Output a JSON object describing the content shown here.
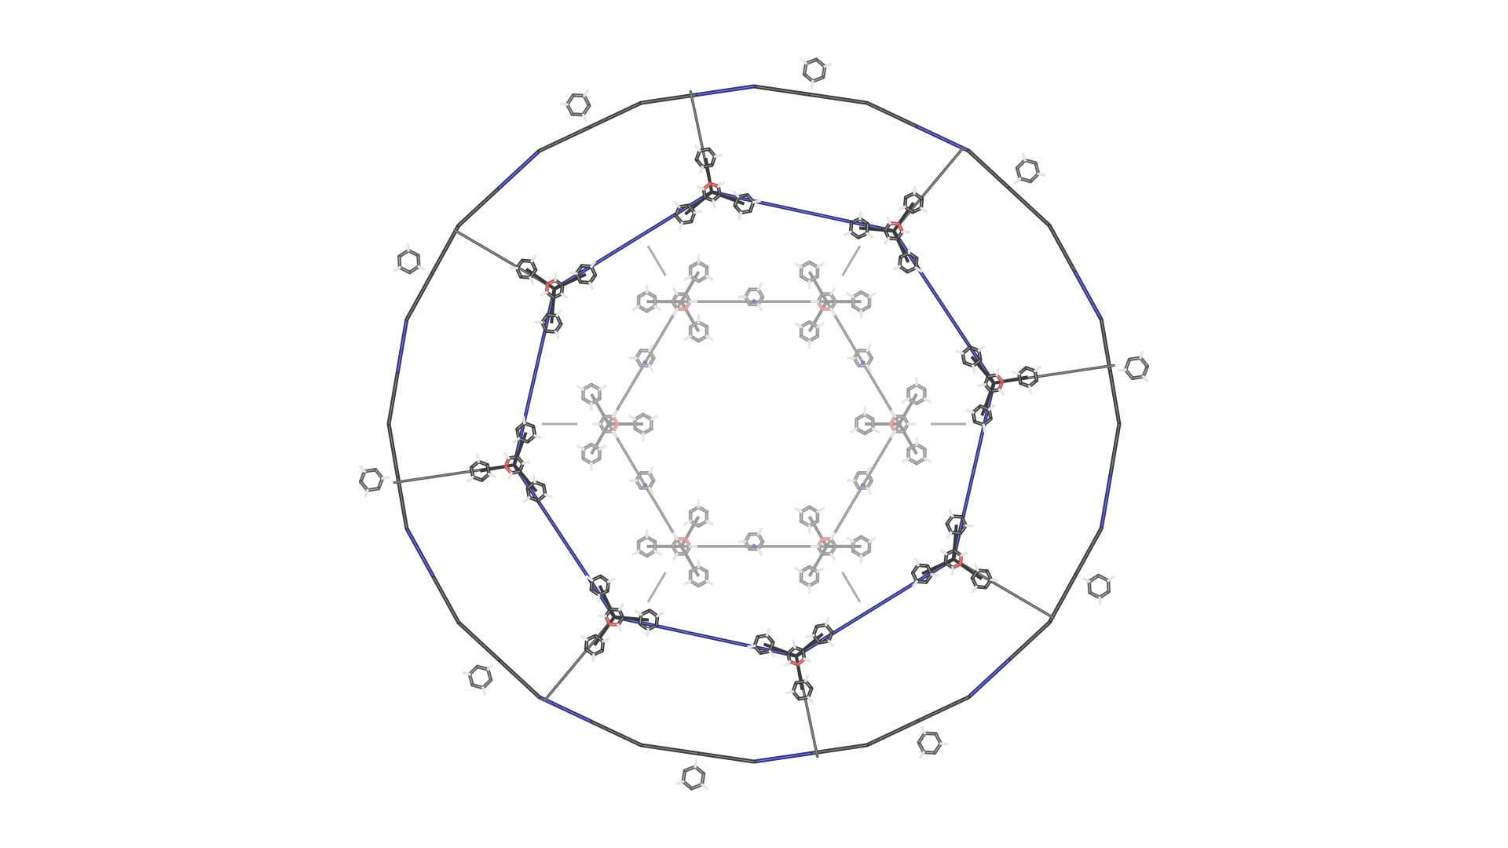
{
  "colors": {
    "background": "#ffffff",
    "carbon_dark": "#3a3a3a",
    "carbon_mid": "#5a5a5a",
    "carbon_light": "#9a9a9a",
    "hydrogen": "#e6e6e6",
    "nitrogen": "#2a2f8f",
    "nitrogen_light": "#7f86c8",
    "oxygen": "#c94a4a",
    "oxygen_light": "#e29a9a"
  },
  "icons": {
    "pyrylium_node": "hexagon-with-red-heteroatom",
    "phenyl_group": "benzene-ring-icon",
    "imine_linker": "double-line-nitrogen-bond"
  }
}
